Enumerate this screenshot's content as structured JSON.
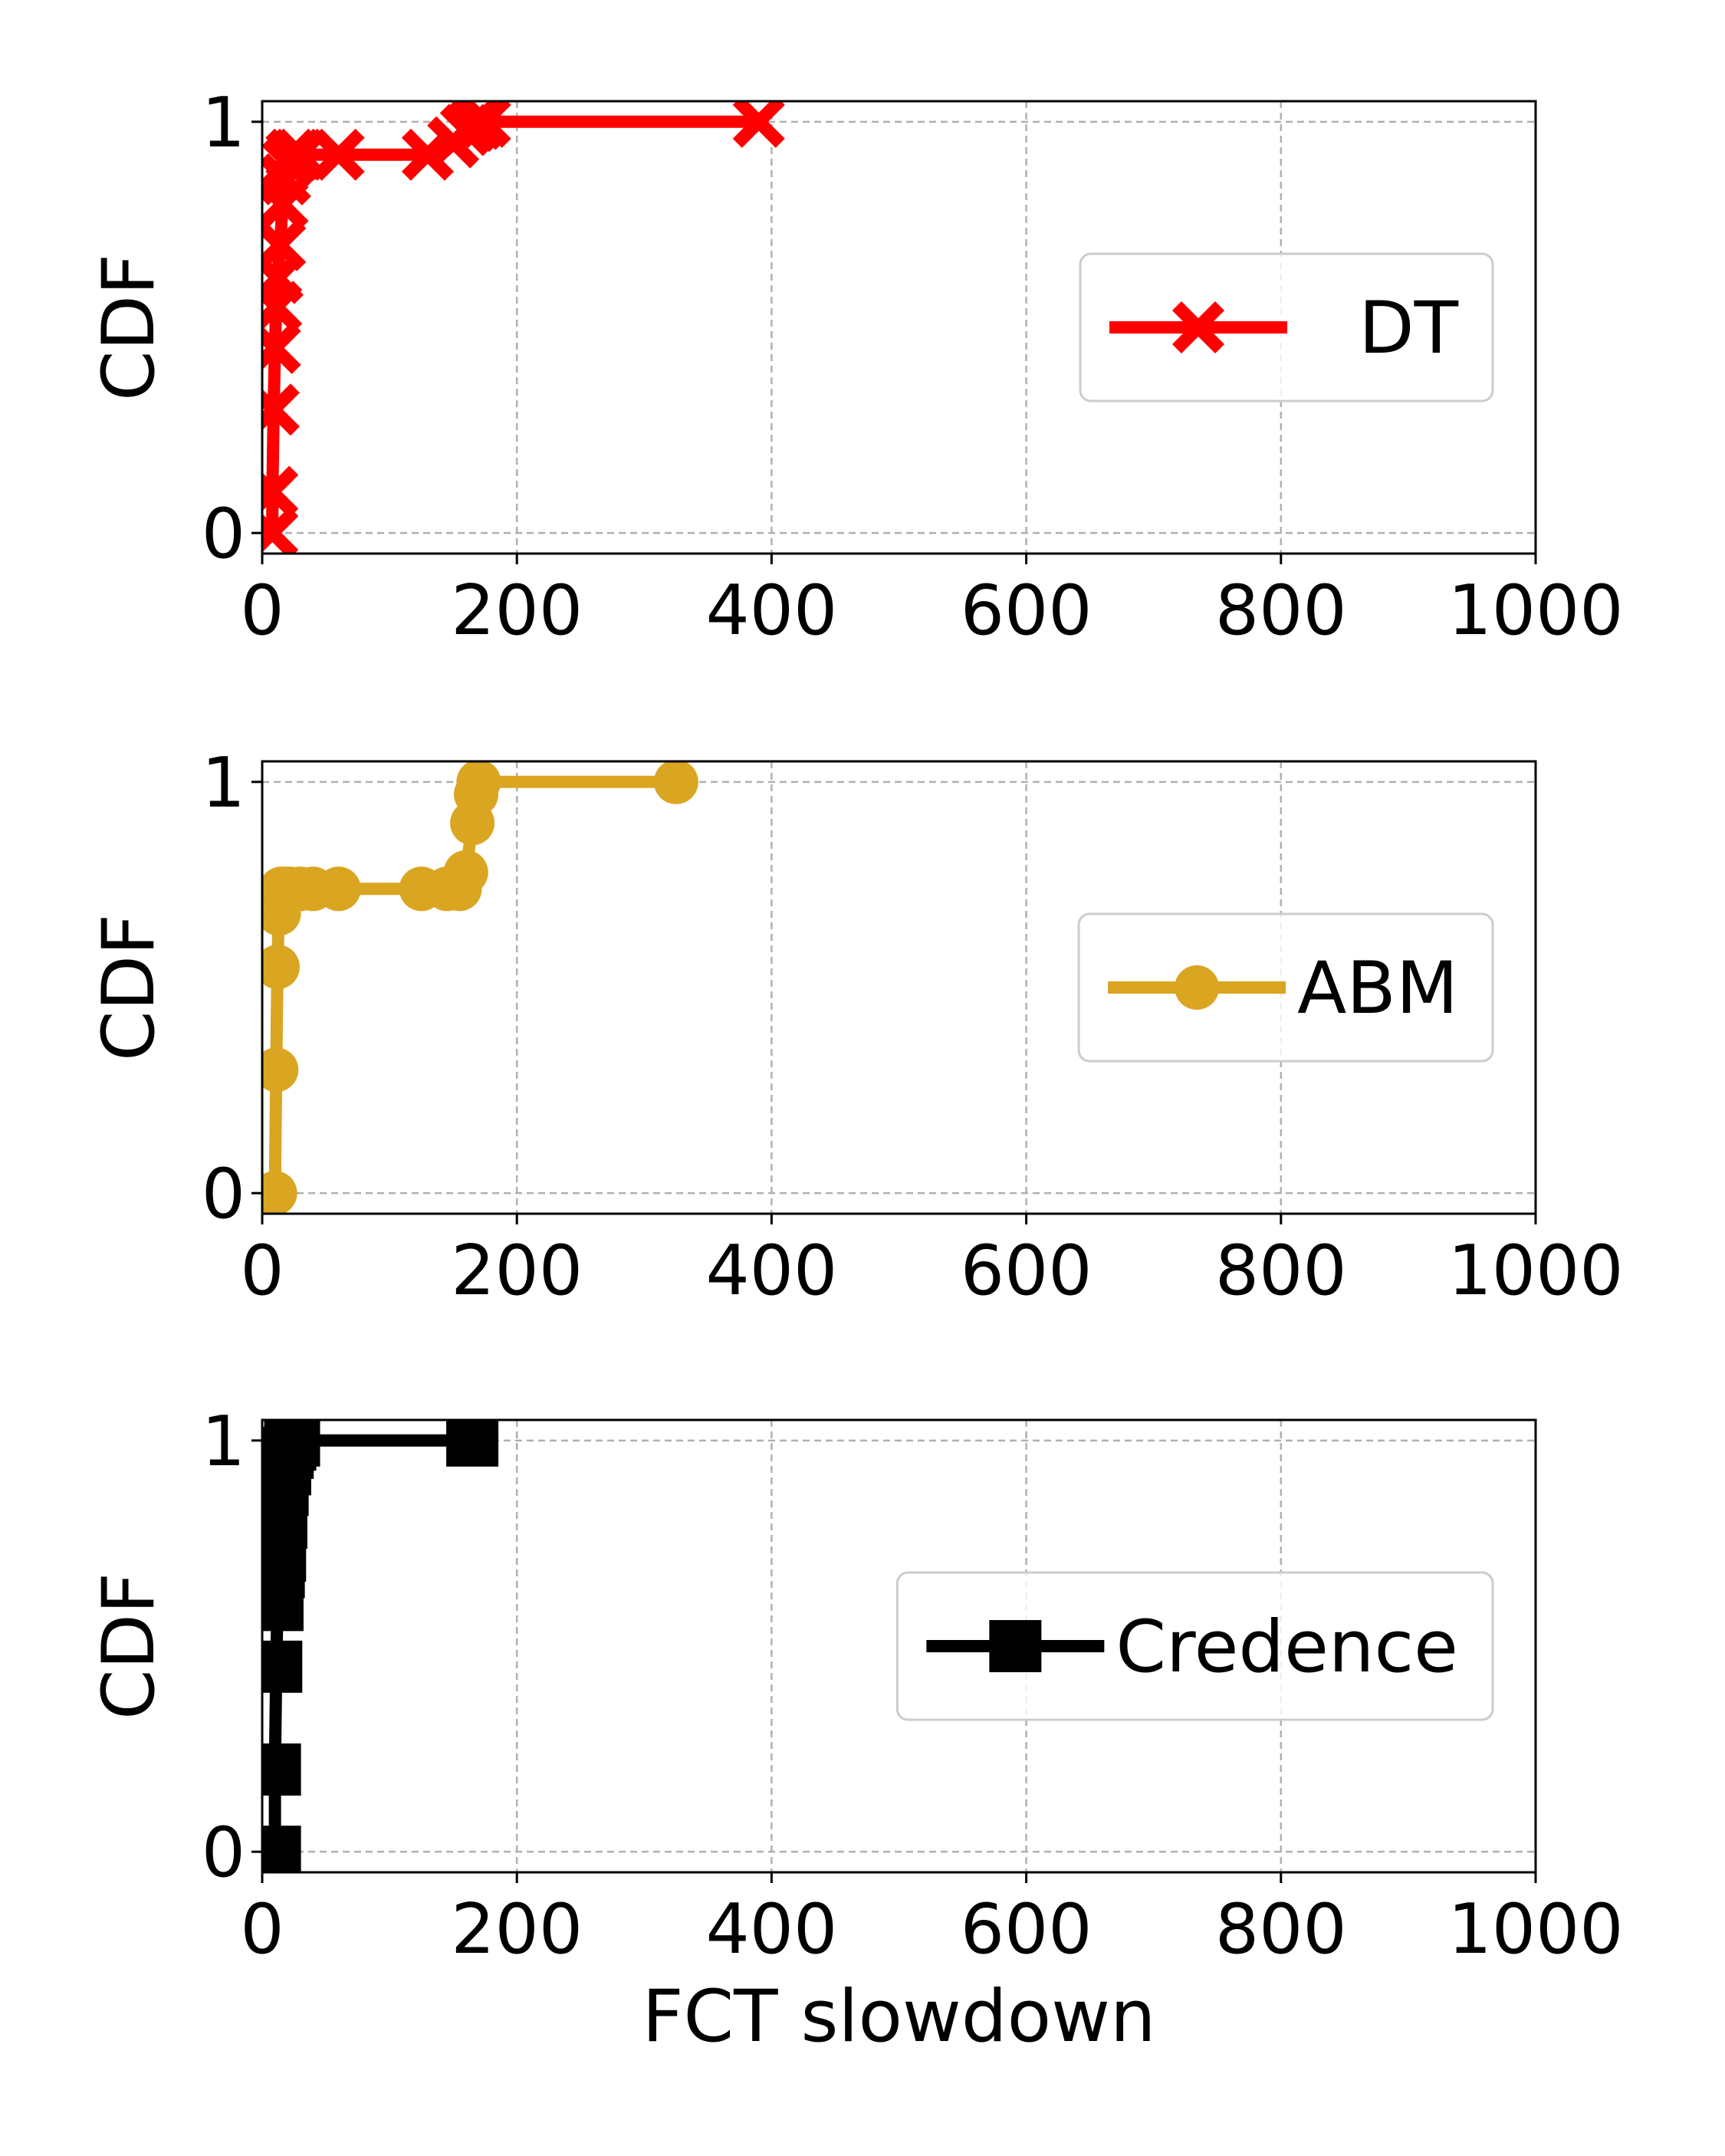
{
  "chart_data": [
    {
      "type": "line",
      "plot": "cdf",
      "xlabel": "",
      "ylabel": "CDF",
      "xlim": [
        0,
        1000
      ],
      "ylim": [
        -0.05,
        1.05
      ],
      "xticks": [
        "0",
        "200",
        "400",
        "600",
        "800",
        "1000"
      ],
      "yticks": [
        "0",
        "1"
      ],
      "xtick_values": [
        0,
        200,
        400,
        600,
        800,
        1000
      ],
      "ytick_values": [
        0,
        1
      ],
      "grid": true,
      "legend": "center-right",
      "series": [
        {
          "name": "DT",
          "color": "#ff0000",
          "marker": "x-icon",
          "x": [
            8,
            8,
            9,
            10,
            11,
            12,
            14,
            16,
            18,
            20,
            23,
            27,
            30,
            60,
            130,
            150,
            160,
            165,
            170,
            175,
            390
          ],
          "y": [
            0.0,
            0.1,
            0.3,
            0.45,
            0.55,
            0.62,
            0.7,
            0.8,
            0.86,
            0.9,
            0.92,
            0.92,
            0.92,
            0.92,
            0.92,
            0.95,
            0.98,
            0.99,
            0.995,
            1.0,
            1.0
          ]
        }
      ]
    },
    {
      "type": "line",
      "plot": "cdf",
      "xlabel": "",
      "ylabel": "CDF",
      "xlim": [
        0,
        1000
      ],
      "ylim": [
        -0.05,
        1.05
      ],
      "xticks": [
        "0",
        "200",
        "400",
        "600",
        "800",
        "1000"
      ],
      "yticks": [
        "0",
        "1"
      ],
      "xtick_values": [
        0,
        200,
        400,
        600,
        800,
        1000
      ],
      "ytick_values": [
        0,
        1
      ],
      "grid": true,
      "legend": "center-right",
      "series": [
        {
          "name": "ABM",
          "color": "#daa520",
          "marker": "circle-icon",
          "x": [
            10,
            11,
            12,
            13,
            14,
            15,
            18,
            22,
            30,
            40,
            60,
            125,
            145,
            155,
            160,
            165,
            168,
            170,
            325
          ],
          "y": [
            0.0,
            0.3,
            0.55,
            0.68,
            0.72,
            0.74,
            0.74,
            0.74,
            0.74,
            0.74,
            0.74,
            0.74,
            0.74,
            0.74,
            0.78,
            0.9,
            0.97,
            1.0,
            1.0
          ]
        }
      ]
    },
    {
      "type": "line",
      "plot": "cdf",
      "xlabel": "FCT slowdown",
      "ylabel": "CDF",
      "xlim": [
        0,
        1000
      ],
      "ylim": [
        -0.05,
        1.05
      ],
      "xticks": [
        "0",
        "200",
        "400",
        "600",
        "800",
        "1000"
      ],
      "yticks": [
        "0",
        "1"
      ],
      "xtick_values": [
        0,
        200,
        400,
        600,
        800,
        1000
      ],
      "ytick_values": [
        0,
        1
      ],
      "grid": true,
      "legend": "center-right",
      "series": [
        {
          "name": "Credence",
          "color": "#000000",
          "marker": "square-icon",
          "x": [
            10,
            10,
            11,
            12,
            13,
            14,
            15,
            16,
            18,
            20,
            22,
            25,
            165
          ],
          "y": [
            0.0,
            0.2,
            0.45,
            0.6,
            0.68,
            0.72,
            0.8,
            0.88,
            0.93,
            0.97,
            0.99,
            1.0,
            1.0
          ]
        }
      ]
    }
  ]
}
